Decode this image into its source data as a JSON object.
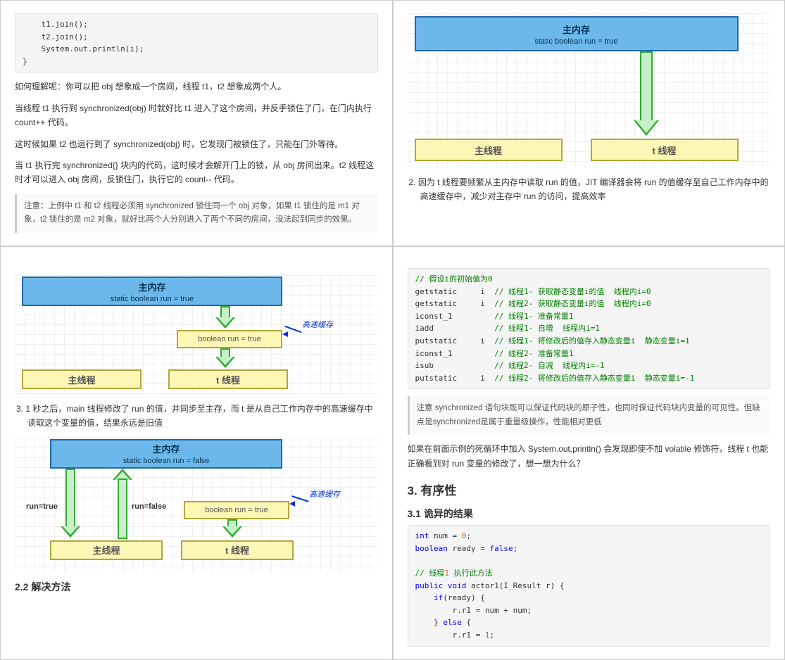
{
  "colors": {
    "blueFill": "#6db8ea",
    "blueBorder": "#1c6aa8",
    "yellowFill": "#fcf7b5",
    "yellowBorder": "#b0a838",
    "greenFill": "#c8f0c8",
    "greenBorder": "#33aa33",
    "cacheText": "#0033dd",
    "gridLine": "#f0f0f0"
  },
  "q1": {
    "code": "    t1.join();\n    t2.join();\n    System.out.println(i);\n}",
    "p1": "如何理解呢：你可以把 obj 想象成一个房间，线程 t1，t2 想象成两个人。",
    "p2": "当线程 t1 执行到 synchronized(obj) 时就好比 t1 进入了这个房间，并反手锁住了门，在门内执行count++ 代码。",
    "p3": "这时候如果 t2 也运行到了 synchronized(obj) 时，它发现门被锁住了，只能在门外等待。",
    "p4": "当 t1 执行完 synchronized{} 块内的代码，这时候才会解开门上的锁，从 obj 房间出来。t2 线程这时才可以进入 obj 房间，反锁住门，执行它的 count-- 代码。",
    "note": "注意：上例中 t1 和 t2 线程必须用 synchronized 锁住同一个 obj 对象，如果 t1 锁住的是 m1 对象，t2 锁住的是 m2 对象，就好比两个人分别进入了两个不同的房间，没法起到同步的效果。"
  },
  "q2": {
    "diagram": {
      "mainMem": {
        "title": "主内存",
        "sub": "static boolean run = true"
      },
      "mainThread": "主线程",
      "tThread": "t 线程"
    },
    "caption": "2. 因为 t 线程要频繁从主内存中读取 run 的值，JIT 编译器会将 run 的值缓存至自己工作内存中的高速缓存中，减少对主存中 run 的访问，提高效率"
  },
  "q3": {
    "d1": {
      "mainMem": {
        "title": "主内存",
        "sub": "static boolean run = true"
      },
      "cache": "boolean run = true",
      "cacheLabel": "高速缓存",
      "mainThread": "主线程",
      "tThread": "t 线程"
    },
    "caption1": "3. 1 秒之后，main 线程修改了 run 的值，并同步至主存，而 t 是从自己工作内存中的高速缓存中读取这个变量的值，结果永远是旧值",
    "d2": {
      "mainMem": {
        "title": "主内存",
        "sub": "static boolean run = false"
      },
      "cache": "boolean run = true",
      "cacheLabel": "高速缓存",
      "mainThread": "主线程",
      "tThread": "t 线程",
      "lblRunTrue": "run=true",
      "lblRunFalse": "run=false"
    },
    "h22": "2.2 解决方法"
  },
  "q4": {
    "bytecode": "// 假设i的初始值为0\ngetstatic     i  // 线程1- 获取静态变量i的值  线程内i=0\ngetstatic     i  // 线程2- 获取静态变量i的值  线程内i=0\niconst_1         // 线程1- 准备常量1\niadd             // 线程1- 自增  线程内i=1\nputstatic     i  // 线程1- 将修改后的值存入静态变量i  静态变量i=1\niconst_1         // 线程2- 准备常量1\nisub             // 线程2- 自减  线程内i=-1\nputstatic     i  // 线程2- 将修改后的值存入静态变量i  静态变量i=-1",
    "note": "注意 synchronized 语句块既可以保证代码块的原子性，也同时保证代码块内变量的可见性。但缺点是synchronized是属于重量级操作，性能相对更低",
    "p1": "如果在前面示例的死循环中加入 System.out.println() 会发现即使不加 volatile 修饰符，线程 t 也能正确看到对 run 变量的修改了，想一想为什么？",
    "h3": "3. 有序性",
    "h31": "3.1 诡异的结果",
    "code2": "int num = 0;\nboolean ready = false;\n\n// 线程1 执行此方法\npublic void actor1(I_Result r) {\n    if(ready) {\n        r.r1 = num + num;\n    } else {\n        r.r1 = 1;"
  }
}
